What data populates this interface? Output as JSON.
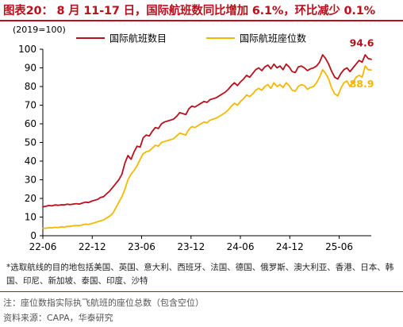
{
  "header": {
    "title": "图表20：  8 月 11-17 日，国际航班数同比增加 6.1%，环比减少 0.1%"
  },
  "chart_data": {
    "type": "line",
    "unit_label": "(2019=100)",
    "ylim": [
      0,
      100
    ],
    "y_ticks": [
      0,
      10,
      20,
      30,
      40,
      50,
      60,
      70,
      80,
      90,
      100
    ],
    "x_ticks": [
      "22-06",
      "22-12",
      "23-06",
      "23-12",
      "24-06",
      "24-12",
      "25-06"
    ],
    "legend_position": "top",
    "grid": false,
    "series": [
      {
        "name": "国际航班数目",
        "color": "#b8101c",
        "end_label": "94.6",
        "values": [
          15.5,
          15.8,
          16.2,
          16.0,
          16.5,
          16.3,
          16.6,
          16.5,
          16.9,
          16.7,
          17.0,
          17.2,
          17.0,
          17.5,
          18.0,
          17.8,
          18.5,
          19.0,
          19.5,
          20.5,
          21.0,
          22.5,
          24.0,
          26.0,
          28.0,
          30.0,
          33.0,
          39.0,
          43.0,
          41.0,
          45.0,
          48.0,
          47.5,
          52.5,
          54.0,
          53.5,
          56.0,
          58.0,
          57.5,
          60.0,
          61.0,
          61.5,
          62.0,
          62.5,
          64.0,
          66.0,
          65.5,
          65.0,
          68.0,
          69.5,
          69.0,
          70.0,
          71.0,
          72.0,
          71.5,
          73.0,
          73.5,
          74.0,
          75.0,
          76.0,
          77.0,
          78.5,
          80.5,
          82.0,
          80.5,
          82.5,
          84.0,
          86.0,
          85.0,
          87.0,
          89.0,
          90.0,
          88.5,
          90.5,
          91.5,
          89.5,
          92.0,
          90.0,
          91.0,
          89.0,
          92.0,
          90.5,
          88.0,
          87.5,
          90.5,
          91.0,
          90.0,
          88.5,
          89.5,
          90.0,
          91.0,
          93.0,
          97.0,
          95.0,
          92.0,
          88.0,
          85.0,
          84.0,
          87.0,
          89.0,
          90.0,
          88.0,
          90.0,
          92.0,
          94.0,
          93.0,
          97.0,
          95.0,
          94.6
        ]
      },
      {
        "name": "国际航班座位数",
        "color": "#f5b800",
        "end_label": "88.9",
        "values": [
          4.0,
          4.0,
          4.3,
          4.2,
          4.5,
          4.4,
          4.8,
          4.6,
          5.0,
          5.0,
          5.3,
          5.5,
          5.4,
          5.8,
          6.2,
          6.0,
          6.5,
          7.0,
          7.5,
          8.0,
          8.5,
          9.5,
          10.5,
          12.0,
          15.0,
          18.0,
          21.0,
          25.0,
          30.0,
          33.0,
          35.0,
          37.5,
          41.0,
          44.0,
          45.0,
          45.5,
          47.0,
          48.5,
          48.0,
          50.0,
          50.5,
          51.0,
          51.5,
          52.0,
          53.5,
          55.0,
          54.5,
          54.0,
          57.0,
          58.5,
          58.0,
          59.0,
          60.0,
          61.0,
          60.5,
          62.0,
          62.5,
          63.0,
          64.0,
          65.0,
          66.0,
          67.5,
          69.5,
          71.0,
          70.0,
          72.0,
          73.5,
          75.5,
          74.5,
          76.0,
          78.0,
          79.0,
          78.0,
          80.0,
          81.0,
          79.0,
          82.0,
          80.0,
          81.0,
          79.5,
          82.0,
          80.5,
          78.0,
          77.5,
          80.0,
          81.0,
          80.5,
          78.5,
          79.5,
          80.0,
          82.0,
          85.0,
          89.0,
          87.0,
          84.0,
          79.0,
          76.0,
          75.0,
          79.0,
          82.0,
          83.0,
          80.0,
          82.0,
          85.0,
          86.0,
          85.0,
          91.0,
          89.0,
          88.9
        ]
      }
    ]
  },
  "footnote_chart": "*选取航线的目的地包括美国、英国、意大利、西班牙、法国、德国、俄罗斯、澳大利亚、香港、日本、韩国、印尼、新加坡、泰国、印度、沙特",
  "footer": {
    "note": "注：座位数指实际执飞航班的座位总数（包含空位）",
    "source": "资料来源：CAPA，华泰研究"
  }
}
